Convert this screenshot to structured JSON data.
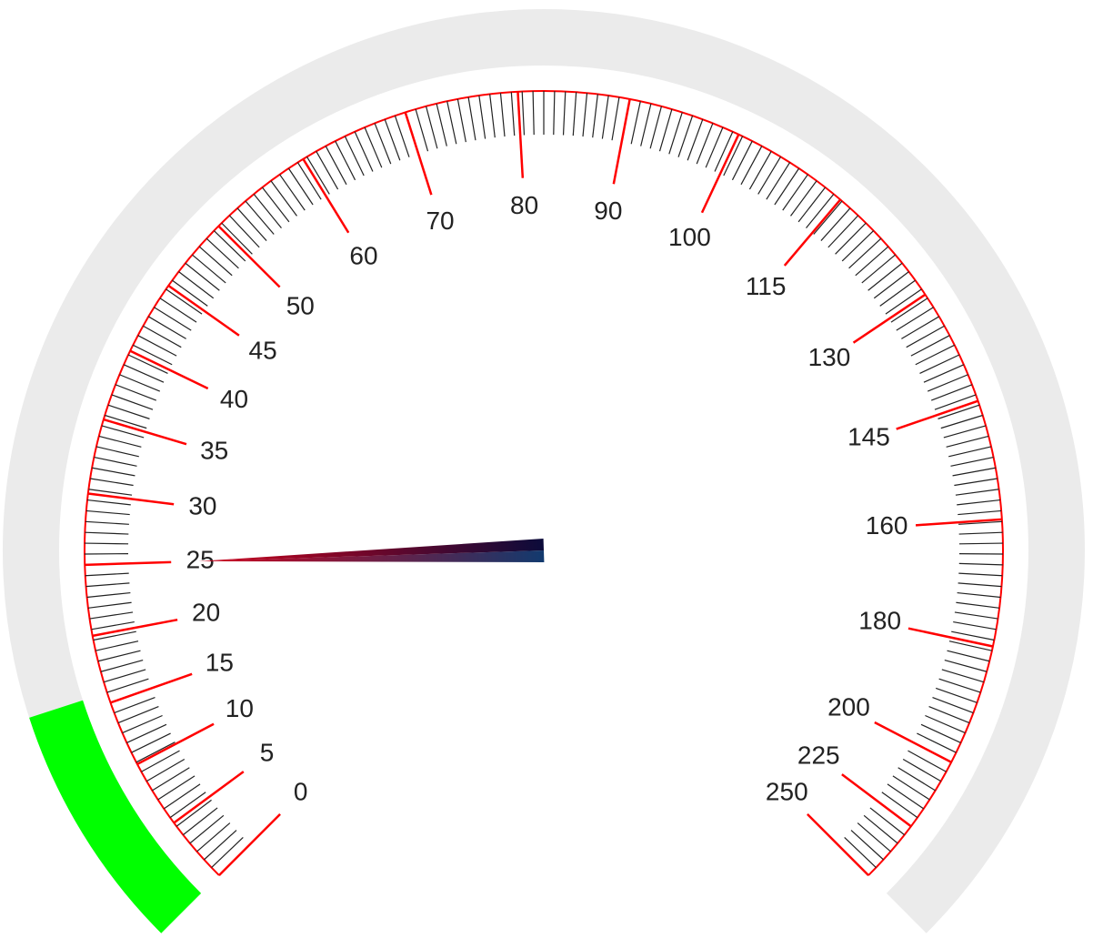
{
  "chart_data": {
    "type": "gauge",
    "value": 25,
    "range": [
      0,
      250
    ],
    "sweep_degrees": 270,
    "major_ticks": [
      0,
      5,
      10,
      15,
      20,
      25,
      30,
      35,
      40,
      45,
      50,
      60,
      70,
      80,
      90,
      100,
      115,
      130,
      145,
      160,
      180,
      200,
      225,
      250
    ],
    "tick_labels": [
      "0",
      "5",
      "10",
      "15",
      "20",
      "25",
      "30",
      "35",
      "40",
      "45",
      "50",
      "60",
      "70",
      "80",
      "90",
      "100",
      "115",
      "130",
      "145",
      "160",
      "180",
      "200",
      "225",
      "250"
    ],
    "minor_tick_count": 200,
    "progress_fraction": 0.1,
    "colors": {
      "major_tick": "#ff0000",
      "minor_tick": "#222222",
      "outer_track": "#ebebeb",
      "progress": "#00ff00",
      "label": "#222222",
      "needle_dark": "#0b0b3a",
      "needle_blue": "#123a6e",
      "needle_red": "#d0021b"
    }
  }
}
